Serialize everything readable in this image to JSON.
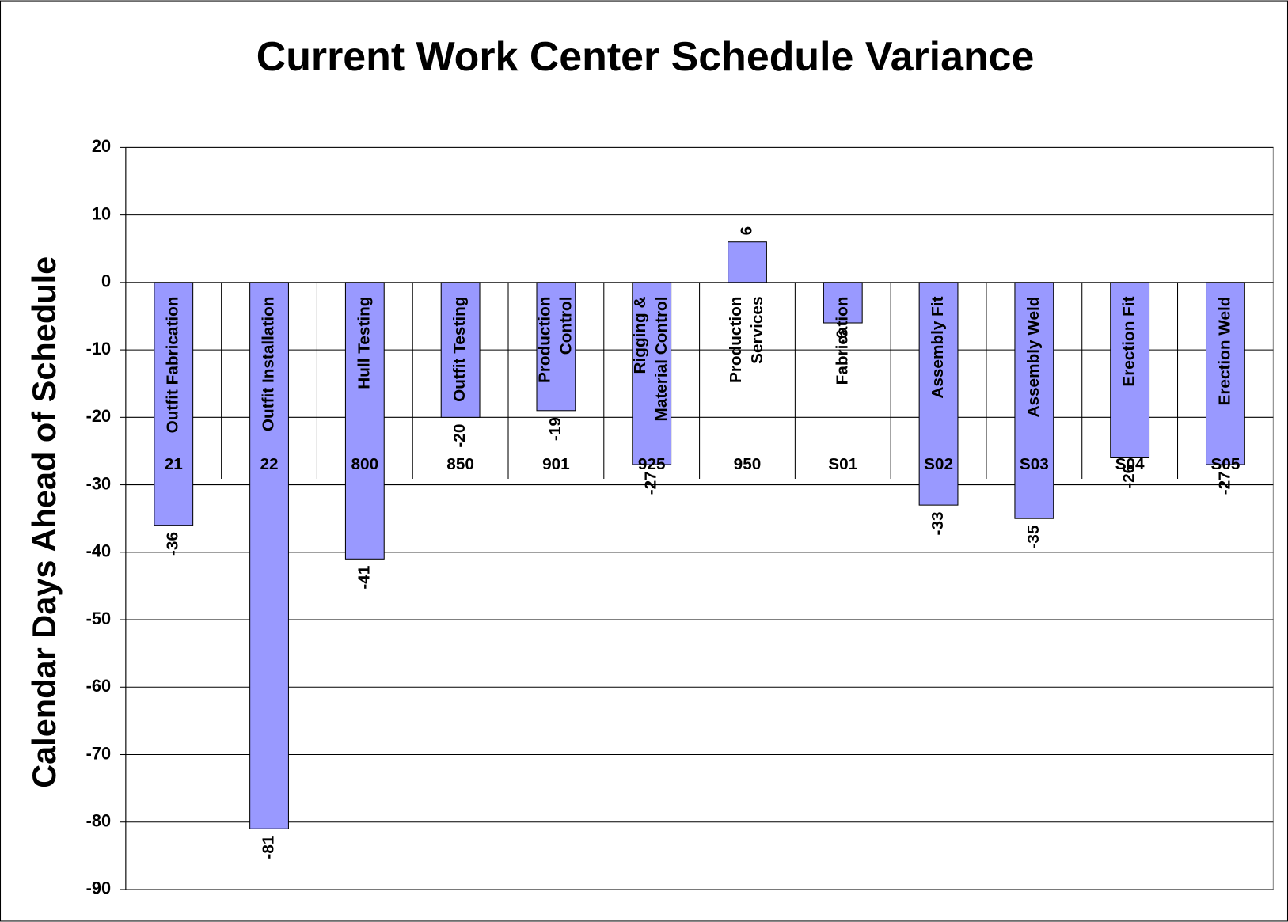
{
  "chart_data": {
    "type": "bar",
    "title": "Current Work Center Schedule Variance",
    "y_axis_label": "Calendar Days Ahead of Schedule",
    "categories": [
      "21",
      "22",
      "800",
      "850",
      "901",
      "925",
      "950",
      "S01",
      "S02",
      "S03",
      "S04",
      "S05"
    ],
    "bar_names": [
      [
        "Outfit Fabrication"
      ],
      [
        "Outfit Installation"
      ],
      [
        "Hull Testing"
      ],
      [
        "Outfit Testing"
      ],
      [
        "Production",
        "Control"
      ],
      [
        "Rigging &",
        "Material Control"
      ],
      [
        "Production",
        "Services"
      ],
      [
        "Fabrication"
      ],
      [
        "Assembly Fit"
      ],
      [
        "Assembly Weld"
      ],
      [
        "Erection Fit"
      ],
      [
        "Erection Weld"
      ]
    ],
    "values": [
      -36,
      -81,
      -41,
      -20,
      -19,
      -27,
      6,
      -6,
      -33,
      -35,
      -26,
      -27
    ],
    "color": "#9999ff",
    "ylim": [
      -90,
      20
    ],
    "yticks": [
      20,
      10,
      0,
      -10,
      -20,
      -30,
      -40,
      -50,
      -60,
      -70,
      -80,
      -90
    ],
    "grid": true
  }
}
